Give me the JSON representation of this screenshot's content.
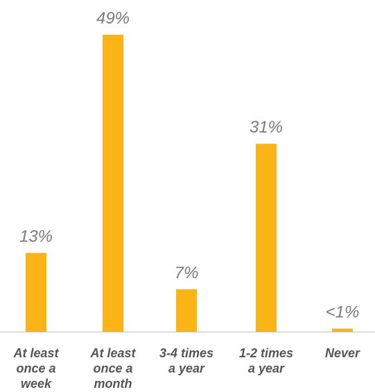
{
  "chart_data": {
    "type": "bar",
    "categories": [
      [
        "At least",
        "once a",
        "week"
      ],
      [
        "At least",
        "once a",
        "month"
      ],
      [
        "3-4 times",
        "a year"
      ],
      [
        "1-2 times",
        "a year"
      ],
      [
        "Never"
      ]
    ],
    "values": [
      13,
      49,
      7,
      31,
      0.5
    ],
    "value_labels": [
      "13%",
      "49%",
      "7%",
      "31%",
      "<1%"
    ],
    "ylim": [
      0,
      50
    ],
    "bar_color": "#FBB416",
    "axis_color": "#BFBFBF",
    "grid": false,
    "legend": "none"
  }
}
